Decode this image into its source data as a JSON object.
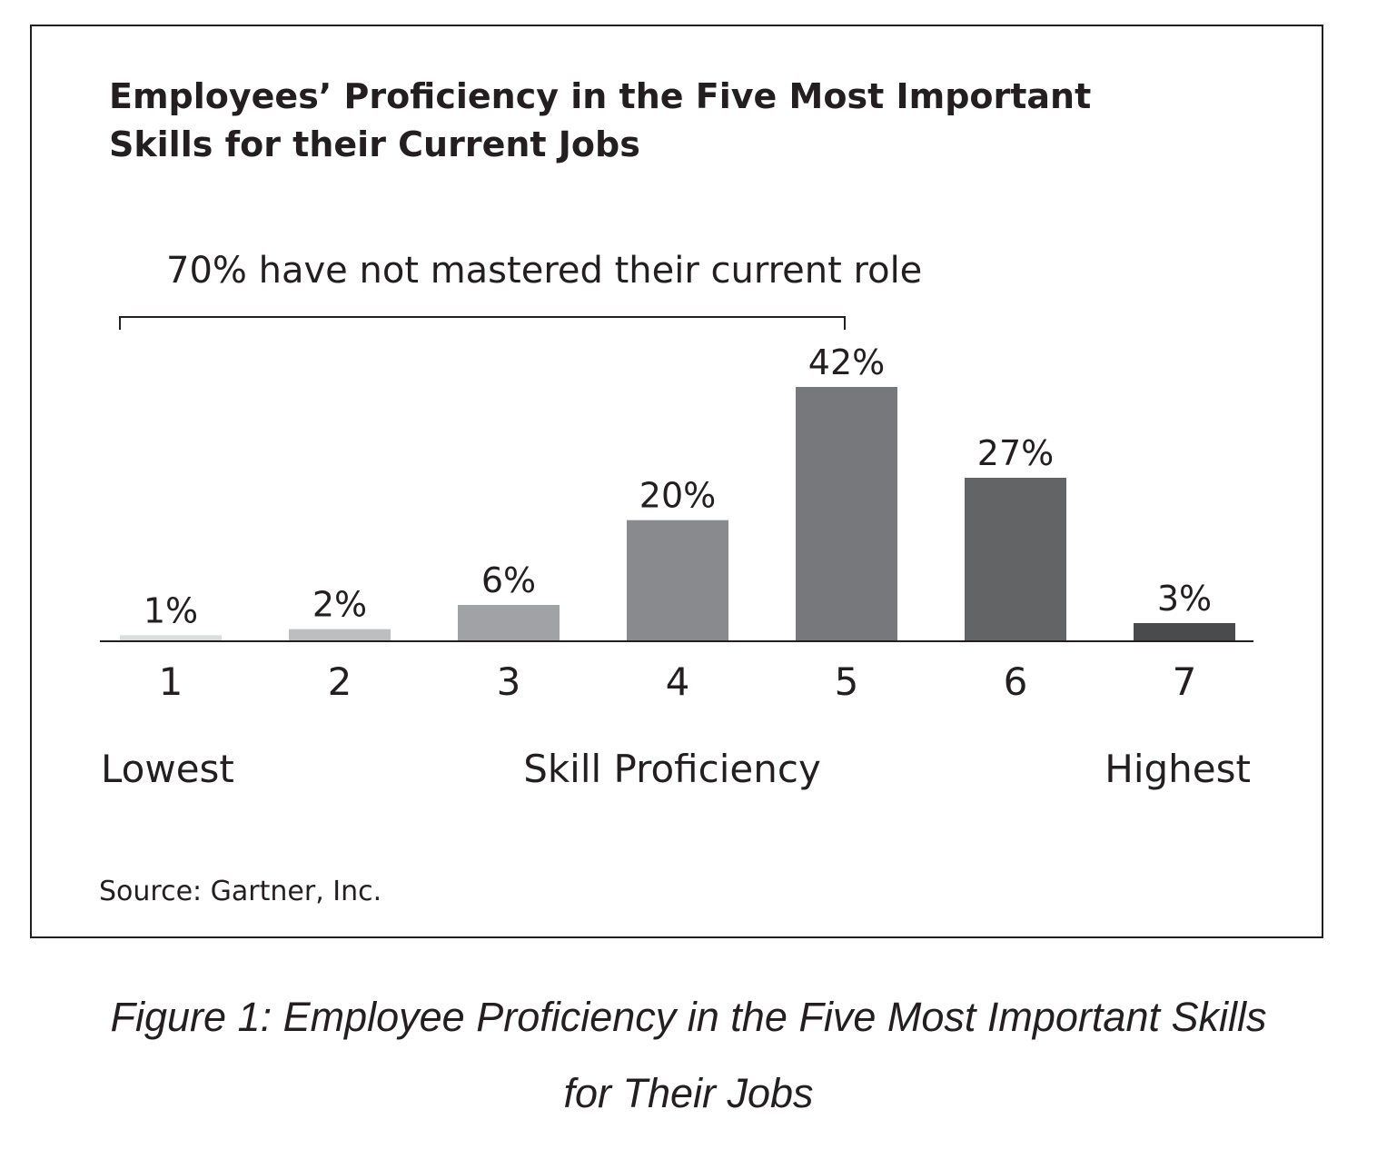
{
  "chart_data": {
    "type": "bar",
    "title_lines": [
      "Employees’ Proficiency in the Five Most Important",
      "Skills for their Current Jobs"
    ],
    "annotation": "70% have not mastered their current role",
    "categories": [
      "1",
      "2",
      "3",
      "4",
      "5",
      "6",
      "7"
    ],
    "values": [
      1,
      2,
      6,
      20,
      42,
      27,
      3
    ],
    "data_labels": [
      "1%",
      "2%",
      "6%",
      "20%",
      "42%",
      "27%",
      "3%"
    ],
    "bar_colors": [
      "#dcdddd",
      "#bcbec0",
      "#a0a2a5",
      "#898a8d",
      "#77787b",
      "#636466",
      "#4a4b4d"
    ],
    "xlabel": "Skill Proficiency",
    "x_low_label": "Lowest",
    "x_high_label": "Highest",
    "ylim": [
      0,
      45
    ],
    "source": "Source: Gartner, Inc."
  },
  "caption_lines": [
    "Figure 1: Employee Proficiency in the Five Most Important Skills",
    "for Their Jobs"
  ]
}
